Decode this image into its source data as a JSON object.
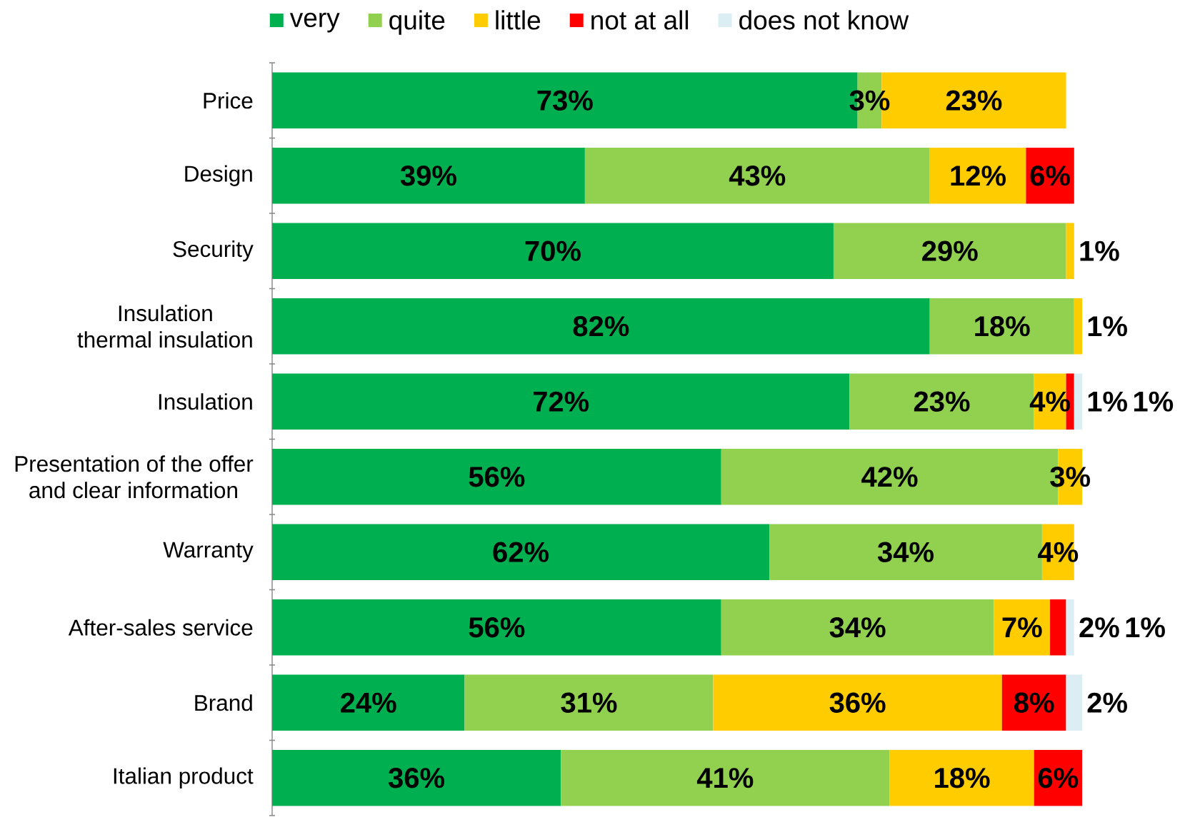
{
  "chart_data": {
    "type": "bar",
    "orientation": "horizontal",
    "stacked": true,
    "legend": "top",
    "tick_labels": "y",
    "categories": [
      "Price",
      "Design",
      "Security",
      "Insulation\nthermal insulation",
      "Insulation",
      "Presentation of the offer\nand clear information",
      "Warranty",
      "After-sales service",
      "Brand",
      "Italian product"
    ],
    "series": [
      {
        "name": "very",
        "color": "#00b050",
        "values": [
          73,
          39,
          70,
          82,
          72,
          56,
          62,
          56,
          24,
          36
        ],
        "value_labels": [
          "73%",
          "39%",
          "70%",
          "82%",
          "72%",
          "56%",
          "62%",
          "56%",
          "24%",
          "36%"
        ]
      },
      {
        "name": "quite",
        "color": "#92d050",
        "values": [
          3,
          43,
          29,
          18,
          23,
          42,
          34,
          34,
          31,
          41
        ],
        "value_labels": [
          "3%",
          "43%",
          "29%",
          "18%",
          "23%",
          "42%",
          "34%",
          "34%",
          "31%",
          "41%"
        ]
      },
      {
        "name": "little",
        "color": "#ffcc00",
        "values": [
          23,
          12,
          1,
          1,
          4,
          3,
          4,
          7,
          36,
          18
        ],
        "value_labels": [
          "23%",
          "12%",
          "1%",
          "1%",
          "4%",
          "3%",
          "4%",
          "7%",
          "36%",
          "18%"
        ]
      },
      {
        "name": "not at all",
        "color": "#ff0000",
        "values": [
          null,
          6,
          null,
          null,
          1,
          null,
          null,
          2,
          8,
          6
        ],
        "value_labels": [
          null,
          "6%",
          null,
          null,
          "1%",
          null,
          null,
          "2%",
          "8%",
          "6%"
        ]
      },
      {
        "name": "does not know",
        "color": "#daeef3",
        "values": [
          null,
          null,
          null,
          null,
          1,
          null,
          null,
          1,
          2,
          null
        ],
        "value_labels": [
          null,
          null,
          null,
          null,
          "1%",
          null,
          null,
          "1%",
          "2%",
          null
        ]
      }
    ]
  }
}
